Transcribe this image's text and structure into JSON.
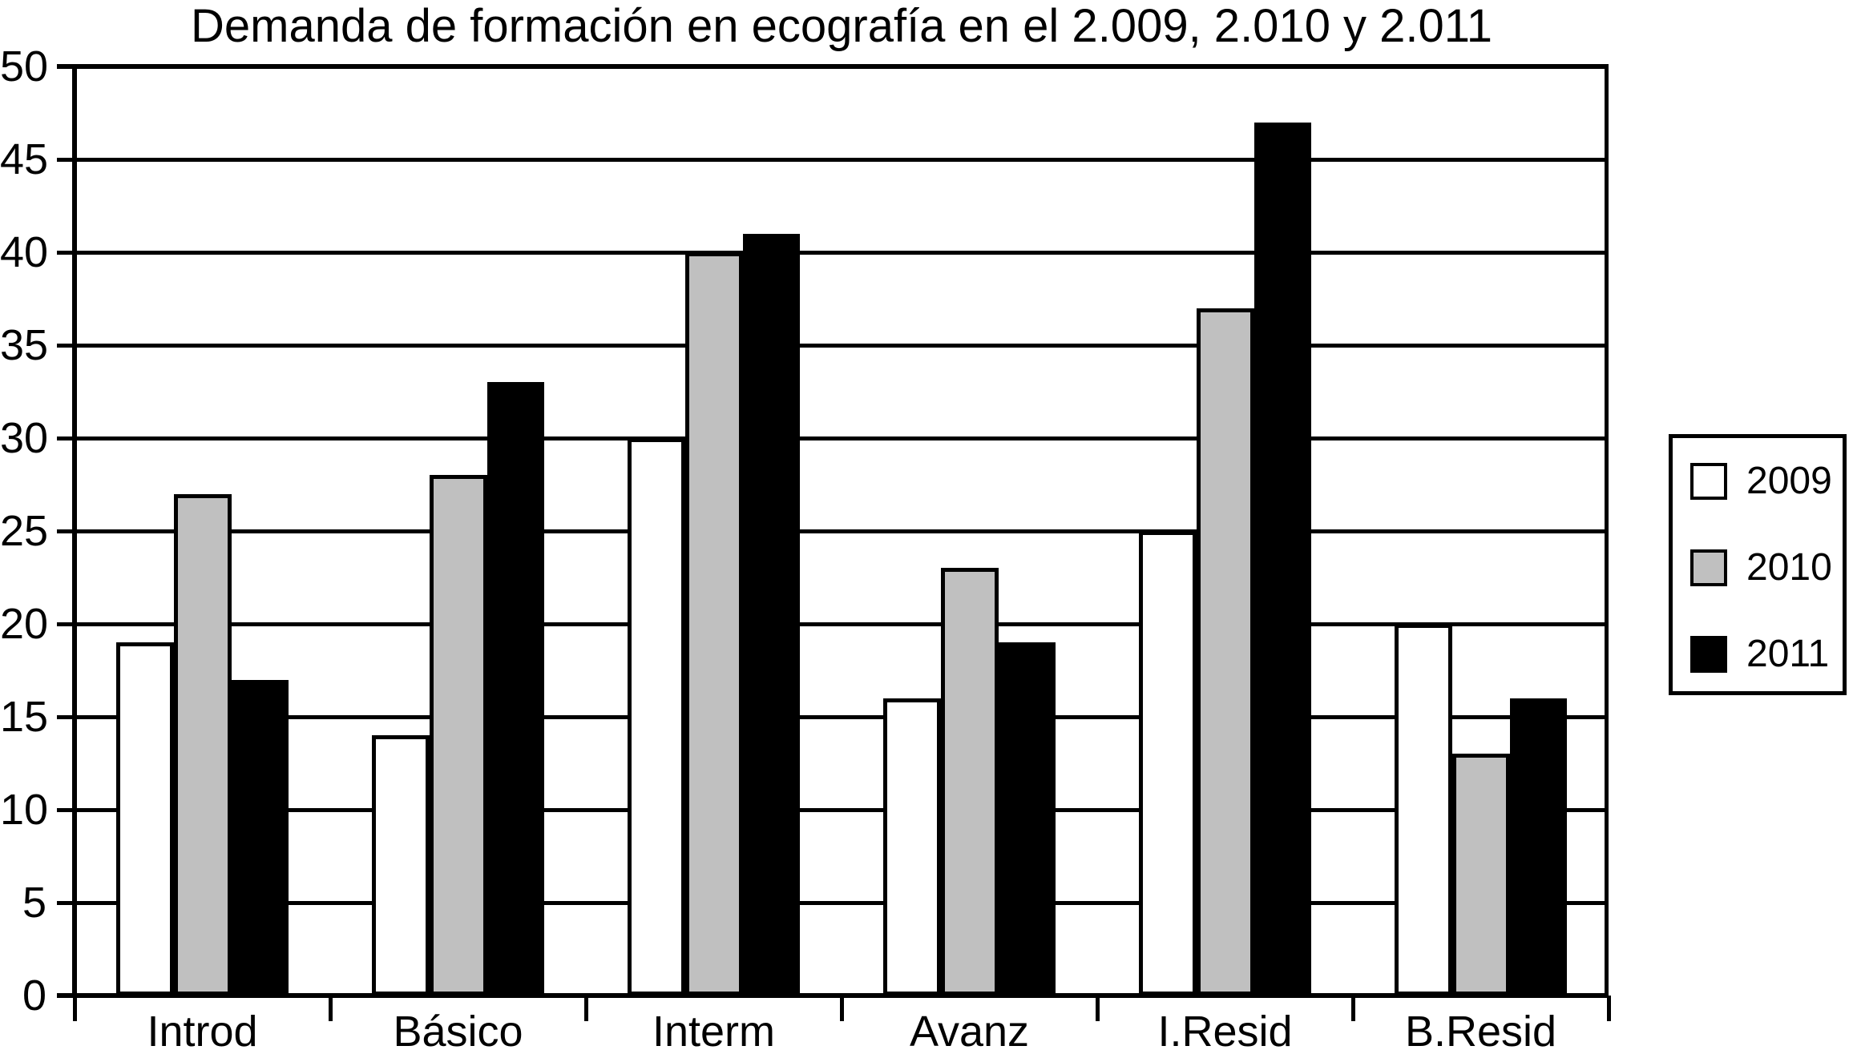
{
  "chart_data": {
    "type": "bar",
    "title": "Demanda de formación en ecografía en el 2.009, 2.010 y 2.011",
    "categories": [
      "Introd",
      "Básico",
      "Interm",
      "Avanz",
      "I.Resid",
      "B.Resid"
    ],
    "series": [
      {
        "name": "2009",
        "color": "#FFFFFF",
        "values": [
          19,
          14,
          30,
          16,
          25,
          20
        ]
      },
      {
        "name": "2010",
        "color": "#C0C0C0",
        "values": [
          27,
          28,
          40,
          23,
          37,
          13
        ]
      },
      {
        "name": "2011",
        "color": "#000000",
        "values": [
          17,
          33,
          41,
          19,
          47,
          16
        ]
      }
    ],
    "xlabel": "",
    "ylabel": "",
    "ylim": [
      0,
      50
    ],
    "ytick_step": 5,
    "grid": "horizontal",
    "legend_position": "right",
    "axis_color": "#000000",
    "background_color": "#FFFFFF"
  }
}
